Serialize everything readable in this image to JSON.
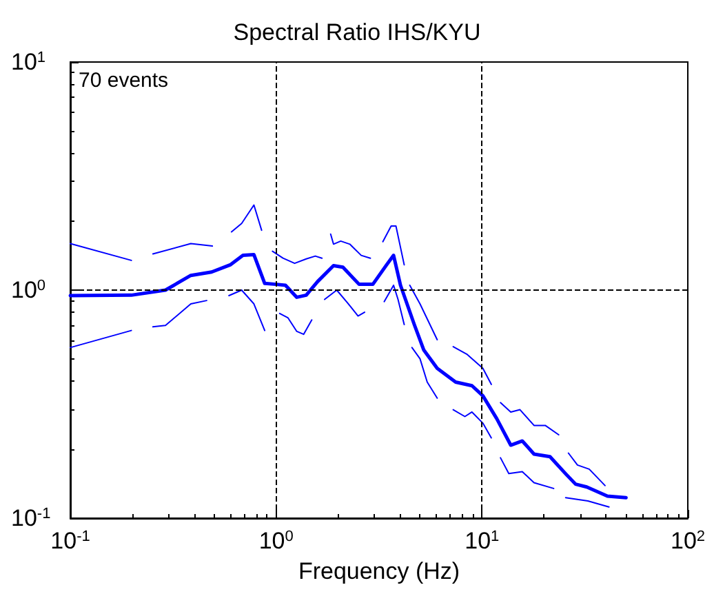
{
  "chart_data": {
    "type": "line",
    "title": "Spectral Ratio IHS/KYU",
    "xlabel": "Frequency (Hz)",
    "log": "xy",
    "grid": false,
    "marker": "none",
    "annotations": [
      "70 events"
    ],
    "xlim": [
      0.1,
      100
    ],
    "ylim": [
      0.1,
      10
    ],
    "xticks": [
      {
        "value": 0.1,
        "label": "10$^{-1}$"
      },
      {
        "value": 1,
        "label": "10$^{0}$"
      },
      {
        "value": 10,
        "label": "10$^{1}$"
      },
      {
        "value": 100,
        "label": "10$^{2}$"
      }
    ],
    "yticks": [
      {
        "value": 0.1,
        "label": "10$^{-1}$"
      },
      {
        "value": 1,
        "label": "10$^{0}$"
      },
      {
        "value": 10,
        "label": "10$^{1}$"
      }
    ],
    "ref_lines": [
      {
        "axis": "x",
        "value": 1,
        "color": "#000000",
        "line_style": "dashed"
      },
      {
        "axis": "x",
        "value": 10,
        "color": "#000000",
        "line_style": "dashed"
      },
      {
        "axis": "y",
        "value": 1,
        "color": "#000000",
        "line_style": "dashed"
      }
    ],
    "series": [
      {
        "color": "#0000ff",
        "x": [
          0.1,
          0.198,
          0.29,
          0.385,
          0.486,
          0.598,
          0.69,
          0.78,
          0.88,
          1.0,
          1.11,
          1.26,
          1.4,
          1.59,
          1.9,
          2.11,
          2.53,
          2.95,
          3.44,
          3.72,
          4.02,
          4.69,
          5.21,
          6.06,
          7.45,
          8.94,
          10.1,
          11.8,
          13.8,
          15.7,
          17.9,
          21.4,
          25.6,
          28.5,
          32.3,
          40.7,
          50.1
        ],
        "values": [
          0.946,
          0.95,
          1.0,
          1.16,
          1.2,
          1.29,
          1.42,
          1.43,
          1.07,
          1.06,
          1.05,
          0.93,
          0.95,
          1.09,
          1.28,
          1.26,
          1.06,
          1.06,
          1.29,
          1.42,
          1.05,
          0.706,
          0.547,
          0.454,
          0.395,
          0.381,
          0.344,
          0.273,
          0.209,
          0.218,
          0.191,
          0.186,
          0.156,
          0.141,
          0.137,
          0.125,
          0.123
        ]
      },
      {
        "color": "#0000ff",
        "x": [
          0.1,
          0.198,
          0.22,
          0.252,
          0.385,
          0.49,
          0.55,
          0.607,
          0.68,
          0.78,
          0.85,
          0.9,
          0.96,
          1.08,
          1.23,
          1.4,
          1.55,
          1.67,
          1.75,
          1.84,
          1.9,
          2.06,
          2.28,
          2.59,
          2.87,
          3.1,
          3.3,
          3.62,
          3.82,
          4.19,
          4.3,
          4.46,
          5.0,
          6.06,
          6.6,
          7.25,
          8.48,
          10.1,
          11.1,
          11.7,
          12.3,
          13.8,
          15.3,
          17.9,
          20.3,
          23.6,
          25,
          26.3,
          29.1,
          33.2,
          39.6
        ],
        "values": [
          1.6,
          1.35,
          null,
          1.44,
          1.6,
          1.56,
          null,
          1.8,
          1.96,
          2.36,
          1.83,
          null,
          1.48,
          1.38,
          1.31,
          1.37,
          1.41,
          1.38,
          null,
          1.76,
          1.59,
          1.64,
          1.59,
          1.42,
          1.38,
          null,
          1.63,
          1.91,
          1.91,
          1.29,
          null,
          1.05,
          0.87,
          0.606,
          null,
          0.565,
          0.522,
          0.454,
          0.386,
          null,
          0.321,
          0.292,
          0.299,
          0.255,
          0.255,
          0.232,
          null,
          0.193,
          0.171,
          0.164,
          0.139
        ]
      },
      {
        "color": "#0000ff",
        "x": [
          0.1,
          0.198,
          0.22,
          0.252,
          0.29,
          0.385,
          0.46,
          0.52,
          0.59,
          0.68,
          0.78,
          0.88,
          0.95,
          1.04,
          1.14,
          1.26,
          1.36,
          1.49,
          1.6,
          1.72,
          1.97,
          2.22,
          2.5,
          2.69,
          3.0,
          3.35,
          3.72,
          3.91,
          4.19,
          4.4,
          4.57,
          5.0,
          5.42,
          6.06,
          6.6,
          7.25,
          8.26,
          8.94,
          10.1,
          11.1,
          11.7,
          12.3,
          13.5,
          15.7,
          17.9,
          22.3,
          24,
          25.5,
          32.7,
          41.4
        ],
        "values": [
          0.56,
          0.665,
          null,
          0.69,
          0.7,
          0.87,
          0.9,
          null,
          0.946,
          1.0,
          0.87,
          0.665,
          null,
          0.79,
          0.757,
          0.659,
          0.64,
          0.74,
          null,
          0.91,
          1.0,
          0.88,
          0.77,
          0.8,
          null,
          0.89,
          1.05,
          0.91,
          0.706,
          null,
          0.56,
          0.5,
          0.395,
          0.336,
          null,
          0.299,
          0.279,
          0.292,
          0.261,
          0.225,
          null,
          0.184,
          0.157,
          0.16,
          0.143,
          0.135,
          null,
          0.123,
          0.119,
          0.112
        ]
      }
    ]
  }
}
